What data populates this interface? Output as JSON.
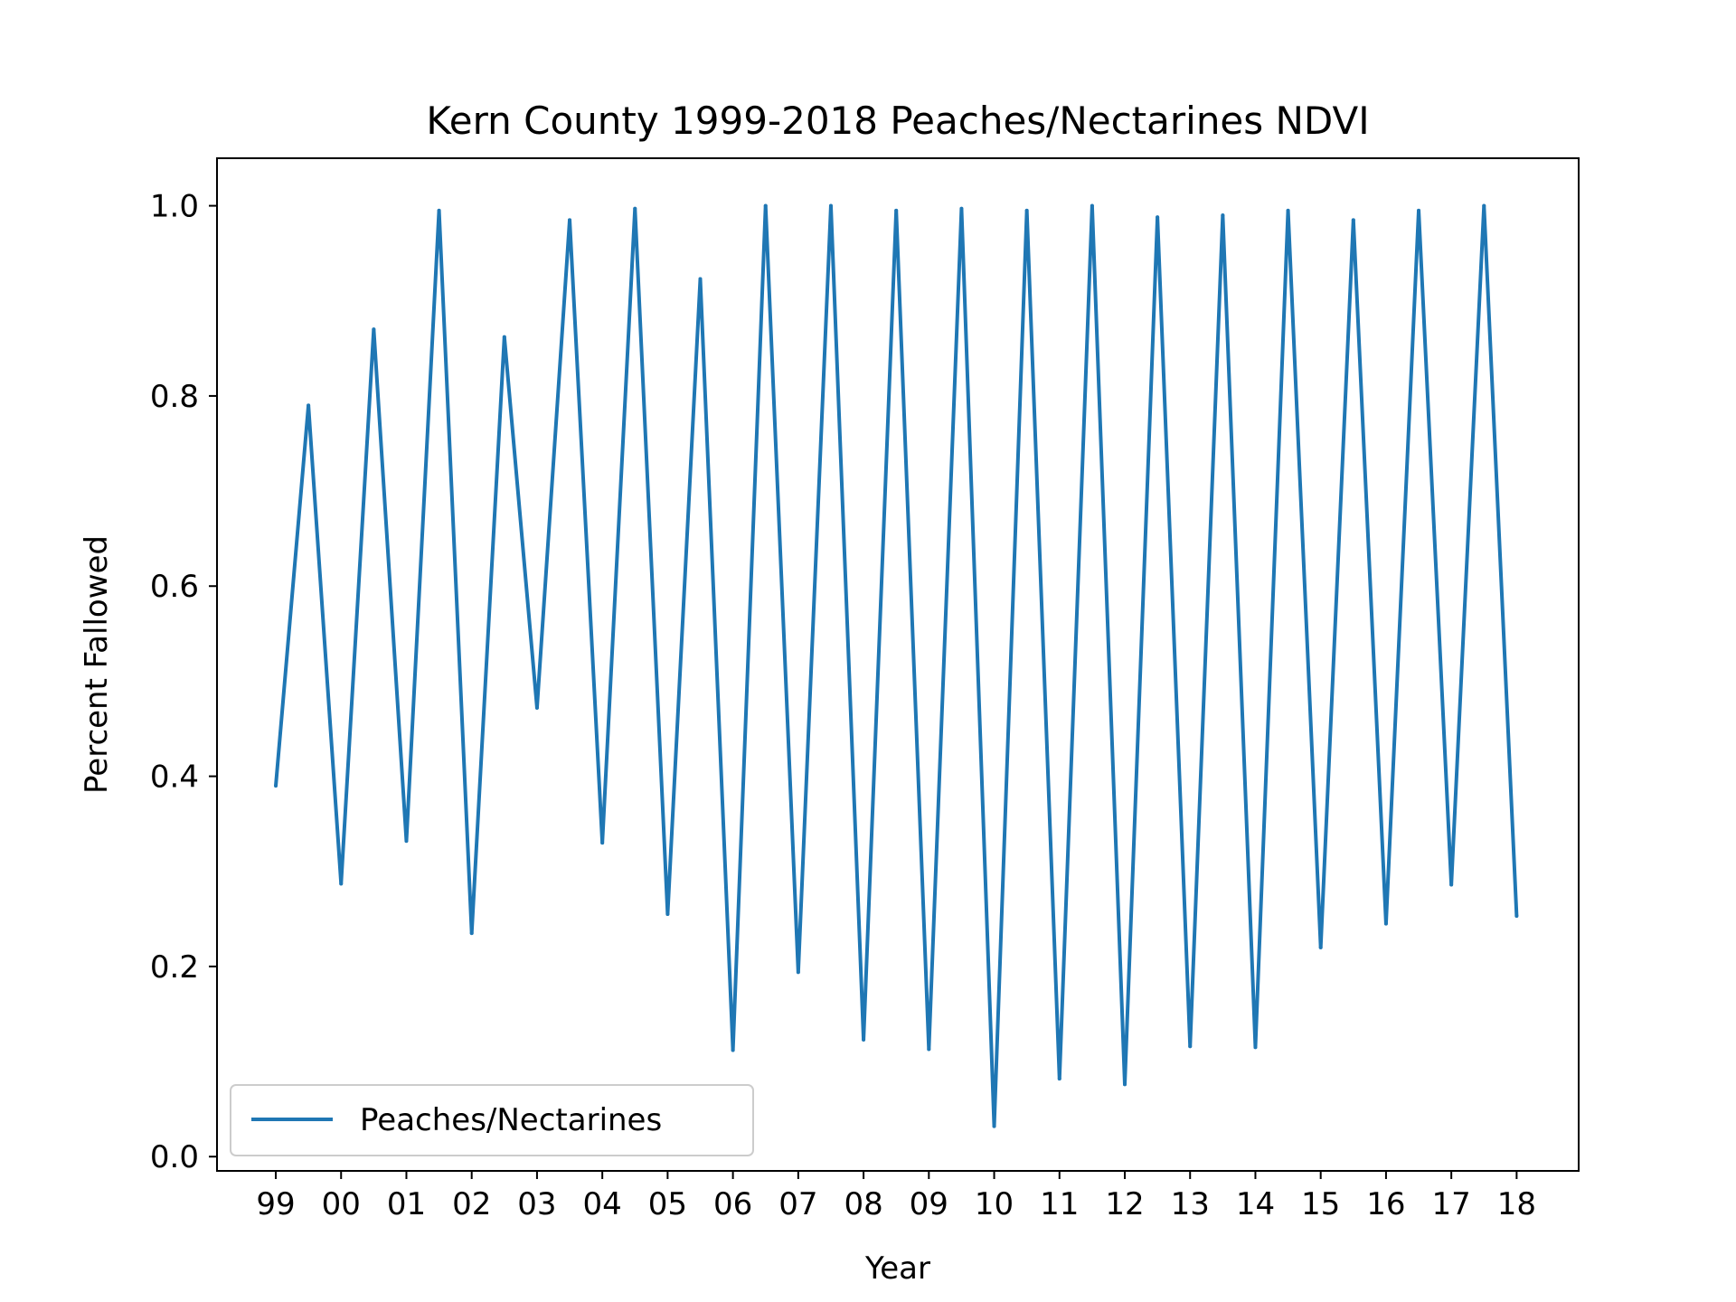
{
  "chart_data": {
    "type": "line",
    "title": "Kern County 1999-2018 Peaches/Nectarines NDVI",
    "xlabel": "Year",
    "ylabel": "Percent Fallowed",
    "xlim": [
      1998.1,
      2018.95
    ],
    "ylim": [
      -0.015,
      1.05
    ],
    "grid": false,
    "legend_position": "lower-left",
    "x_ticks": [
      1999,
      2000,
      2001,
      2002,
      2003,
      2004,
      2005,
      2006,
      2007,
      2008,
      2009,
      2010,
      2011,
      2012,
      2013,
      2014,
      2015,
      2016,
      2017,
      2018
    ],
    "x_tick_labels": [
      "99",
      "00",
      "01",
      "02",
      "03",
      "04",
      "05",
      "06",
      "07",
      "08",
      "09",
      "10",
      "11",
      "12",
      "13",
      "14",
      "15",
      "16",
      "17",
      "18"
    ],
    "y_ticks": [
      0.0,
      0.2,
      0.4,
      0.6,
      0.8,
      1.0
    ],
    "y_tick_labels": [
      "0.0",
      "0.2",
      "0.4",
      "0.6",
      "0.8",
      "1.0"
    ],
    "colors": {
      "series": "#1f77b4"
    },
    "series": [
      {
        "name": "Peaches/Nectarines",
        "x": [
          1999,
          1999.5,
          2000,
          2000.5,
          2001,
          2001.5,
          2002,
          2002.5,
          2003,
          2003.5,
          2004,
          2004.5,
          2005,
          2005.5,
          2006,
          2006.5,
          2007,
          2007.5,
          2008,
          2008.5,
          2009,
          2009.5,
          2010,
          2010.5,
          2011,
          2011.5,
          2012,
          2012.5,
          2013,
          2013.5,
          2014,
          2014.5,
          2015,
          2015.5,
          2016,
          2016.5,
          2017,
          2017.5,
          2018
        ],
        "y": [
          0.39,
          0.79,
          0.287,
          0.87,
          0.332,
          0.995,
          0.235,
          0.862,
          0.472,
          0.985,
          0.33,
          0.997,
          0.255,
          0.923,
          0.112,
          1.0,
          0.194,
          1.0,
          0.123,
          0.995,
          0.113,
          0.997,
          0.032,
          0.995,
          0.082,
          1.0,
          0.076,
          0.988,
          0.116,
          0.99,
          0.115,
          0.995,
          0.22,
          0.985,
          0.245,
          0.995,
          0.286,
          1.0,
          0.253
        ]
      }
    ]
  }
}
